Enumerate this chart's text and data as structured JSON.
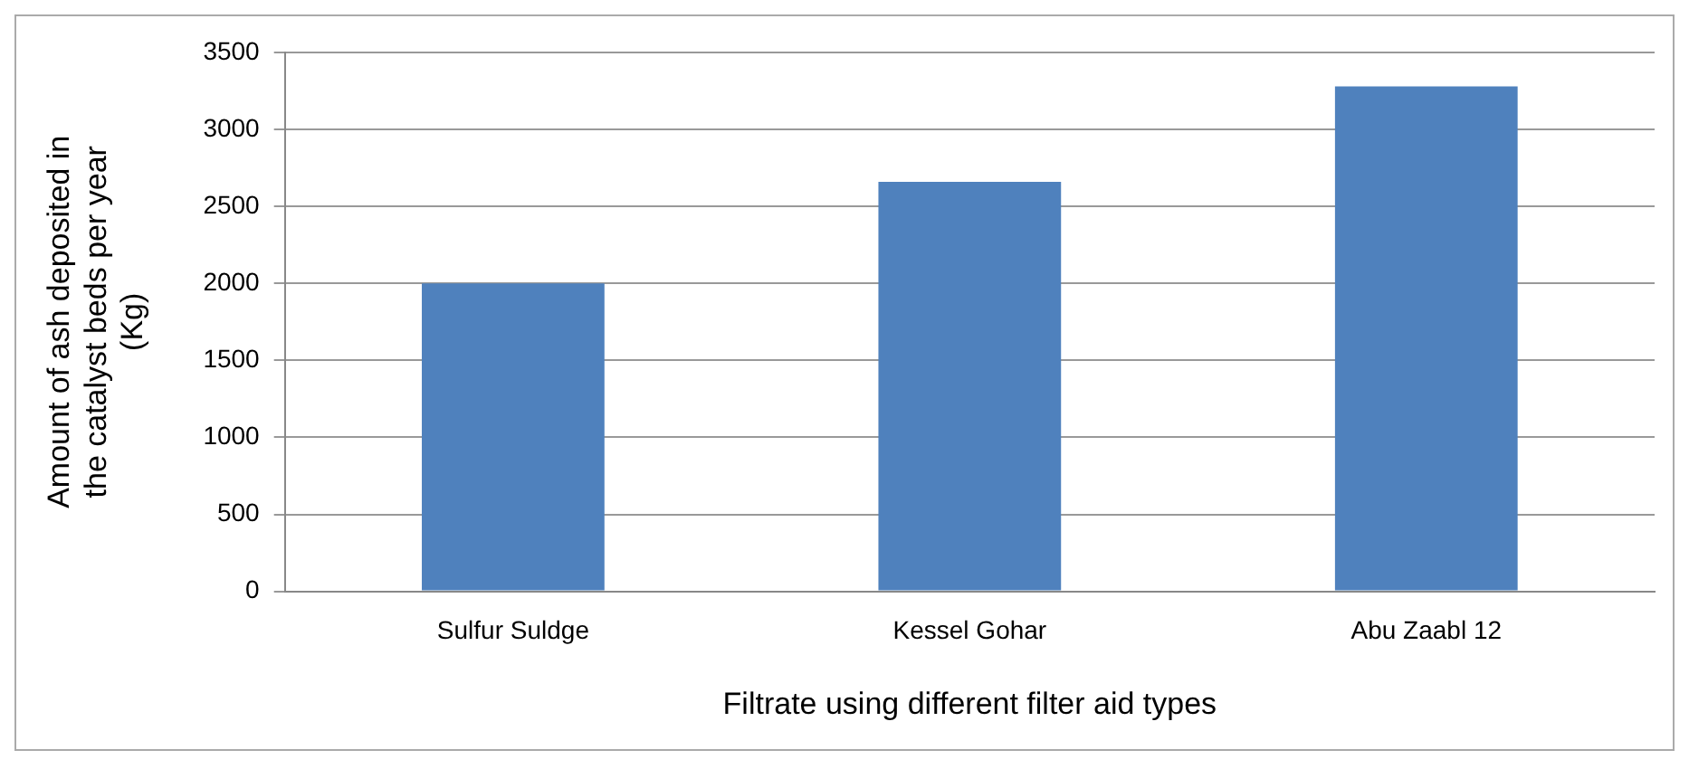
{
  "chart_data": {
    "type": "bar",
    "xlabel": "Filtrate using different filter aid types",
    "ylabel": "Amount of ash deposited in the catalyst beds per year (Kg)",
    "categories": [
      "Sulfur Suldge",
      "Kessel Gohar",
      "Abu Zaabl 12"
    ],
    "values": [
      2000,
      2660,
      3280
    ],
    "color": "#4f81bd",
    "ylim": [
      0,
      3500
    ],
    "yticks": [
      0,
      500,
      1000,
      1500,
      2000,
      2500,
      3000,
      3500
    ],
    "grid": "y",
    "legend": false
  }
}
